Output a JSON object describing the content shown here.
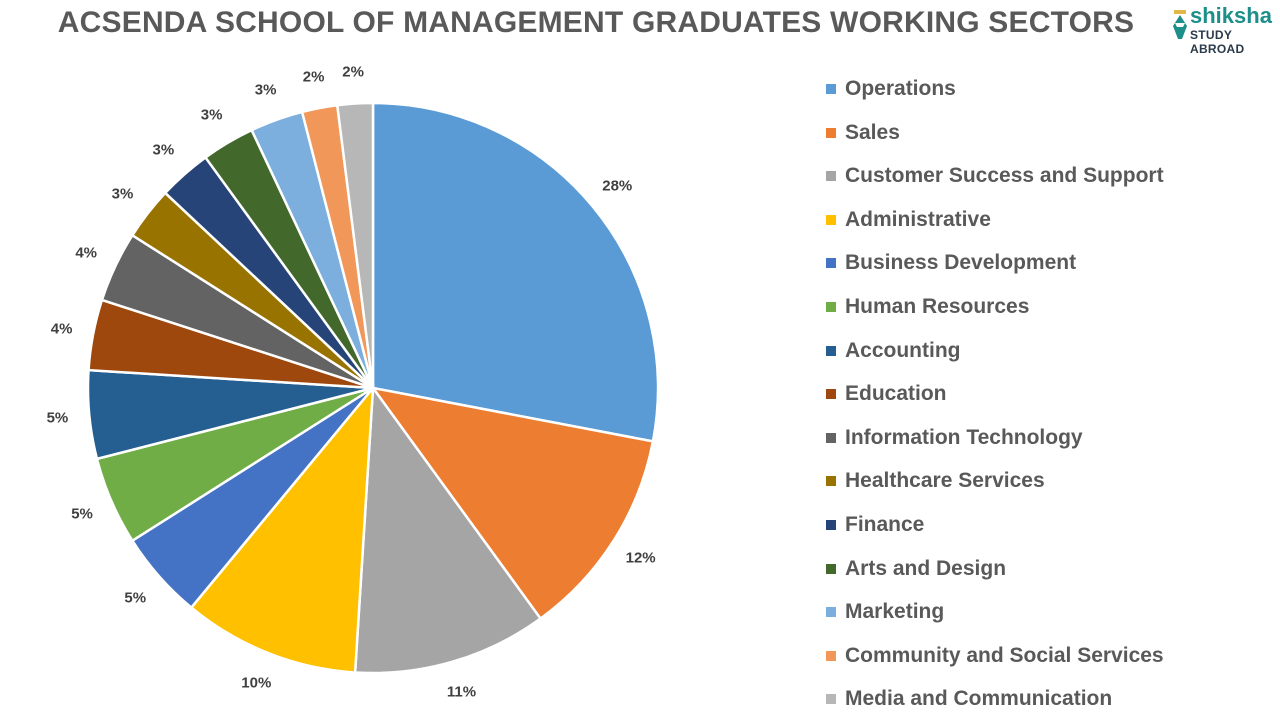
{
  "header": {
    "title": "ACSENDA SCHOOL OF MANAGEMENT GRADUATES WORKING SECTORS",
    "logo_brand": "shiksha",
    "logo_sub": "STUDY ABROAD"
  },
  "chart_data": {
    "type": "pie",
    "title": "ACSENDA SCHOOL OF MANAGEMENT GRADUATES WORKING SECTORS",
    "categories": [
      "Operations",
      "Sales",
      "Customer Success and Support",
      "Administrative",
      "Business Development",
      "Human Resources",
      "Accounting",
      "Education",
      "Information Technology",
      "Healthcare Services",
      "Finance",
      "Arts and Design",
      "Marketing",
      "Community and Social Services",
      "Media and Communication"
    ],
    "values": [
      28,
      12,
      11,
      10,
      5,
      5,
      5,
      4,
      4,
      3,
      3,
      3,
      3,
      2,
      2
    ],
    "labels": [
      "28%",
      "12%",
      "11%",
      "10%",
      "5%",
      "5%",
      "5%",
      "4%",
      "4%",
      "3%",
      "3%",
      "3%",
      "3%",
      "2%",
      "2%"
    ],
    "colors": [
      "#5b9bd5",
      "#ed7d31",
      "#a5a5a5",
      "#ffc000",
      "#4472c4",
      "#70ad47",
      "#255e91",
      "#9e480e",
      "#636363",
      "#997300",
      "#264478",
      "#43682b",
      "#7cafdd",
      "#f1975a",
      "#b7b7b7"
    ],
    "legend_position": "right",
    "start_angle_deg": 0,
    "direction": "clockwise"
  },
  "legend": {
    "items": [
      {
        "label": "Operations",
        "color": "#5b9bd5"
      },
      {
        "label": "Sales",
        "color": "#ed7d31"
      },
      {
        "label": "Customer Success and Support",
        "color": "#a5a5a5"
      },
      {
        "label": "Administrative",
        "color": "#ffc000"
      },
      {
        "label": "Business Development",
        "color": "#4472c4"
      },
      {
        "label": "Human Resources",
        "color": "#70ad47"
      },
      {
        "label": "Accounting",
        "color": "#255e91"
      },
      {
        "label": "Education",
        "color": "#9e480e"
      },
      {
        "label": "Information Technology",
        "color": "#636363"
      },
      {
        "label": "Healthcare Services",
        "color": "#997300"
      },
      {
        "label": "Finance",
        "color": "#264478"
      },
      {
        "label": "Arts and Design",
        "color": "#43682b"
      },
      {
        "label": "Marketing",
        "color": "#7cafdd"
      },
      {
        "label": "Community and Social Services",
        "color": "#f1975a"
      },
      {
        "label": "Media and Communication",
        "color": "#b7b7b7"
      }
    ]
  }
}
